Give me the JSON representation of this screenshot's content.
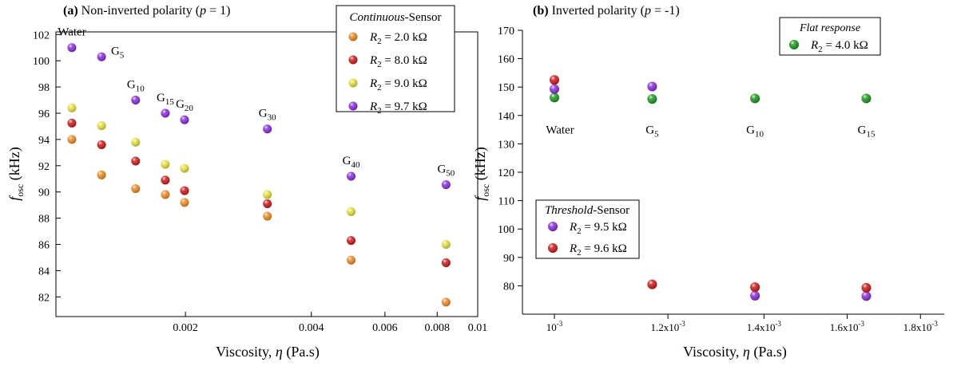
{
  "chart_data": [
    {
      "type": "scatter",
      "panel_label": "(a)",
      "title": "Non-inverted polarity (",
      "title_sym": "p",
      "title_tail": " = 1)",
      "xlabel": "Viscosity, ",
      "xlabel_sym": "η",
      "xlabel_unit": " (Pa.s)",
      "ylabel_f": "f",
      "ylabel_sub": "osc",
      "ylabel_unit": " (kHz)",
      "x_scale": "log",
      "xlim": [
        0.00098,
        0.01
      ],
      "ylim": [
        80.5,
        102.2
      ],
      "x_ticks": [
        0.002,
        0.004,
        0.006,
        0.008,
        0.01
      ],
      "x_tick_labels": [
        "0.002",
        "0.004",
        "0.006",
        "0.008",
        "0.01"
      ],
      "y_ticks": [
        82,
        84,
        86,
        88,
        90,
        92,
        94,
        96,
        98,
        100,
        102
      ],
      "y_tick_labels": [
        "82",
        "84",
        "86",
        "88",
        "90",
        "92",
        "94",
        "96",
        "98",
        "100",
        "102"
      ],
      "legend": {
        "title_italic": "Continuous",
        "title_rest": "-Sensor",
        "placement": "top-right"
      },
      "x": [
        0.00107,
        0.00126,
        0.00152,
        0.00179,
        0.00199,
        0.00314,
        0.00498,
        0.0084
      ],
      "series": [
        {
          "name_sym": "R",
          "name_sub": "2",
          "name_val": " = 2.0 kΩ",
          "color": "#f08a1e",
          "values": [
            94.0,
            91.3,
            90.25,
            89.8,
            89.2,
            88.15,
            84.8,
            81.6
          ]
        },
        {
          "name_sym": "R",
          "name_sub": "2",
          "name_val": " = 8.0 kΩ",
          "color": "#d01818",
          "values": [
            95.25,
            93.6,
            92.35,
            90.9,
            90.1,
            89.1,
            86.3,
            84.6
          ]
        },
        {
          "name_sym": "R",
          "name_sub": "2",
          "name_val": " = 9.0 kΩ",
          "color": "#e6e03a",
          "values": [
            96.4,
            95.05,
            93.8,
            92.1,
            91.8,
            89.8,
            88.5,
            86.0
          ]
        },
        {
          "name_sym": "R",
          "name_sub": "2",
          "name_val": " = 9.7 kΩ",
          "color": "#8a2be2",
          "values": [
            101.0,
            100.3,
            97.0,
            96.0,
            95.5,
            94.8,
            91.2,
            90.55
          ]
        }
      ],
      "annotations": [
        {
          "base": "Water",
          "sub": "",
          "x": 0.00107,
          "y": 101.0
        },
        {
          "base": "G",
          "sub": "5",
          "x": 0.00126,
          "y": 100.3
        },
        {
          "base": "G",
          "sub": "10",
          "x": 0.00152,
          "y": 97.0
        },
        {
          "base": "G",
          "sub": "15",
          "x": 0.00179,
          "y": 96.0
        },
        {
          "base": "G",
          "sub": "20",
          "x": 0.00199,
          "y": 95.5
        },
        {
          "base": "G",
          "sub": "30",
          "x": 0.00314,
          "y": 94.8
        },
        {
          "base": "G",
          "sub": "40",
          "x": 0.00498,
          "y": 91.2
        },
        {
          "base": "G",
          "sub": "50",
          "x": 0.0084,
          "y": 90.55
        }
      ]
    },
    {
      "type": "scatter",
      "panel_label": "(b)",
      "title": "Inverted polarity (",
      "title_sym": "p",
      "title_tail": " = -1)",
      "xlabel": "Viscosity, ",
      "xlabel_sym": "η",
      "xlabel_unit": " (Pa.s)",
      "ylabel_f": "f",
      "ylabel_sub": "osc",
      "ylabel_unit": " (kHz)",
      "x_scale": "log",
      "xlim": [
        0.00095,
        0.00187
      ],
      "ylim": [
        70,
        170
      ],
      "x_ticks": [
        0.001,
        0.0012,
        0.0014,
        0.0016,
        0.0018
      ],
      "x_tick_base": [
        "10",
        "1.2x10",
        "1.4x10",
        "1.6x10",
        "1.8x10"
      ],
      "x_tick_exp": [
        "-3",
        "-3",
        "-3",
        "-3",
        "-3"
      ],
      "y_ticks": [
        80,
        90,
        100,
        110,
        120,
        130,
        140,
        150,
        160,
        170
      ],
      "y_tick_labels": [
        "80",
        "90",
        "100",
        "110",
        "120",
        "130",
        "140",
        "150",
        "160",
        "170"
      ],
      "legend_flat": {
        "title": "Flat response",
        "placement": "top-right"
      },
      "legend_threshold": {
        "title_italic": "Threshold",
        "title_rest": "-Sensor",
        "placement": "bottom-left"
      },
      "series": [
        {
          "name_sym": "R",
          "name_sub": "2",
          "name_val": " = 4.0 kΩ",
          "color": "#1a9a1a",
          "legend": "flat",
          "x": [
            0.001,
            0.00117,
            0.00138,
            0.00165
          ],
          "values": [
            146.3,
            145.8,
            146.0,
            146.0
          ]
        },
        {
          "name_sym": "R",
          "name_sub": "2",
          "name_val": " = 9.5 kΩ",
          "color": "#8a2be2",
          "legend": "threshold",
          "x": [
            0.001,
            0.00117,
            0.00138,
            0.00165
          ],
          "values": [
            149.3,
            150.2,
            76.5,
            76.4
          ]
        },
        {
          "name_sym": "R",
          "name_sub": "2",
          "name_val": " = 9.6 kΩ",
          "color": "#d01818",
          "legend": "threshold",
          "x": [
            0.001,
            0.00117,
            0.00138,
            0.00165
          ],
          "values": [
            152.5,
            80.5,
            79.5,
            79.3
          ]
        }
      ],
      "annotations": [
        {
          "base": "Water",
          "sub": "",
          "x": 0.001
        },
        {
          "base": "G",
          "sub": "5",
          "x": 0.00117
        },
        {
          "base": "G",
          "sub": "10",
          "x": 0.00138
        },
        {
          "base": "G",
          "sub": "15",
          "x": 0.00165
        }
      ],
      "annotation_y": 139.5
    }
  ]
}
